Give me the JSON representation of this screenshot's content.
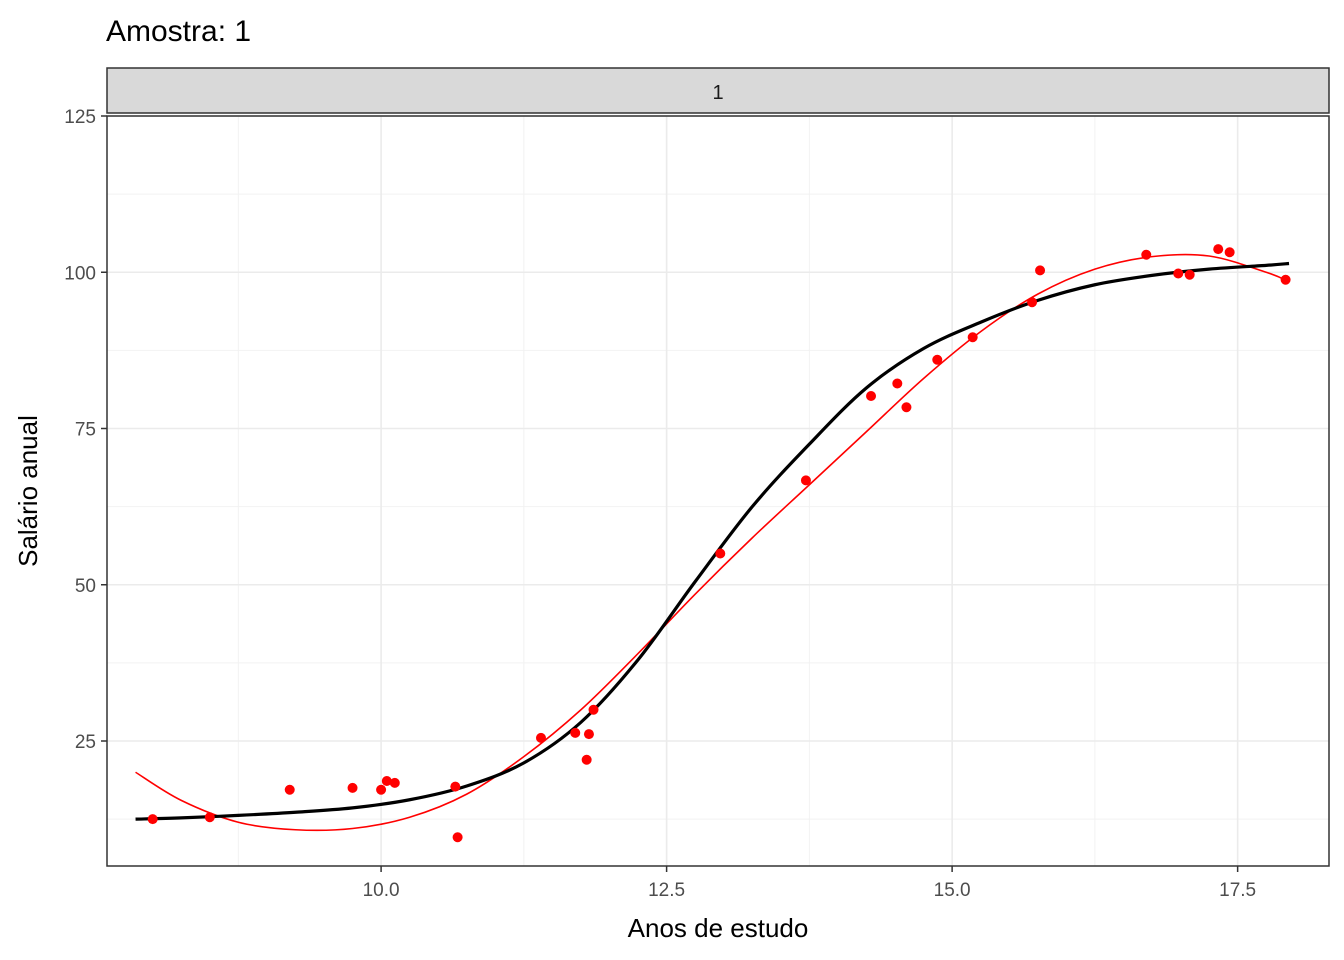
{
  "chart_data": {
    "type": "scatter",
    "title": "Amostra: 1",
    "facet_label": "1",
    "xlabel": "Anos de estudo",
    "ylabel": "Salário anual",
    "xlim": [
      7.6,
      18.3
    ],
    "ylim": [
      5,
      125
    ],
    "x_ticks": [
      10.0,
      12.5,
      15.0,
      17.5
    ],
    "x_tick_labels": [
      "10.0",
      "12.5",
      "15.0",
      "17.5"
    ],
    "y_ticks": [
      25,
      50,
      75,
      100,
      125
    ],
    "y_tick_labels": [
      "25",
      "50",
      "75",
      "100",
      "125"
    ],
    "grid": true,
    "colors": {
      "points": "#ff0000",
      "true_curve": "#000000",
      "fit_curve": "#ff0000"
    },
    "points": [
      {
        "x": 8.0,
        "y": 12.5
      },
      {
        "x": 8.5,
        "y": 12.8
      },
      {
        "x": 9.2,
        "y": 17.2
      },
      {
        "x": 9.75,
        "y": 17.5
      },
      {
        "x": 10.0,
        "y": 17.2
      },
      {
        "x": 10.05,
        "y": 18.6
      },
      {
        "x": 10.12,
        "y": 18.3
      },
      {
        "x": 10.65,
        "y": 17.7
      },
      {
        "x": 10.67,
        "y": 9.6
      },
      {
        "x": 11.4,
        "y": 25.5
      },
      {
        "x": 11.7,
        "y": 26.3
      },
      {
        "x": 11.8,
        "y": 22.0
      },
      {
        "x": 11.82,
        "y": 26.1
      },
      {
        "x": 11.86,
        "y": 30.0
      },
      {
        "x": 12.97,
        "y": 55.0
      },
      {
        "x": 13.72,
        "y": 66.7
      },
      {
        "x": 14.29,
        "y": 80.2
      },
      {
        "x": 14.52,
        "y": 82.2
      },
      {
        "x": 14.6,
        "y": 78.4
      },
      {
        "x": 14.87,
        "y": 86.0
      },
      {
        "x": 15.18,
        "y": 89.6
      },
      {
        "x": 15.7,
        "y": 95.2
      },
      {
        "x": 15.77,
        "y": 100.3
      },
      {
        "x": 16.7,
        "y": 102.8
      },
      {
        "x": 16.98,
        "y": 99.8
      },
      {
        "x": 17.08,
        "y": 99.6
      },
      {
        "x": 17.33,
        "y": 103.7
      },
      {
        "x": 17.43,
        "y": 103.2
      },
      {
        "x": 17.92,
        "y": 98.8
      }
    ],
    "true_curve": {
      "x": [
        7.85,
        8.25,
        8.75,
        9.25,
        9.75,
        10.25,
        10.75,
        11.25,
        11.75,
        12.25,
        12.75,
        13.25,
        13.75,
        14.25,
        14.75,
        15.25,
        15.75,
        16.25,
        16.75,
        17.25,
        17.75,
        17.95
      ],
      "y": [
        12.5,
        12.7,
        13.1,
        13.6,
        14.3,
        15.6,
        17.8,
        21.5,
        28.0,
        38.0,
        50.5,
        62.5,
        72.5,
        81.5,
        87.8,
        92.0,
        95.5,
        98.0,
        99.5,
        100.5,
        101.1,
        101.4
      ]
    },
    "fit_curve": {
      "x": [
        7.85,
        8.25,
        8.75,
        9.25,
        9.75,
        10.25,
        10.75,
        11.25,
        11.75,
        12.25,
        12.75,
        13.25,
        13.75,
        14.25,
        14.75,
        15.25,
        15.75,
        16.25,
        16.75,
        17.25,
        17.75,
        17.95
      ],
      "y": [
        20.0,
        15.5,
        12.0,
        10.8,
        11.0,
        12.8,
        16.5,
        22.5,
        30.0,
        39.0,
        48.5,
        57.5,
        66.0,
        74.5,
        83.0,
        90.5,
        96.5,
        100.5,
        102.5,
        102.6,
        100.0,
        98.5
      ]
    }
  }
}
